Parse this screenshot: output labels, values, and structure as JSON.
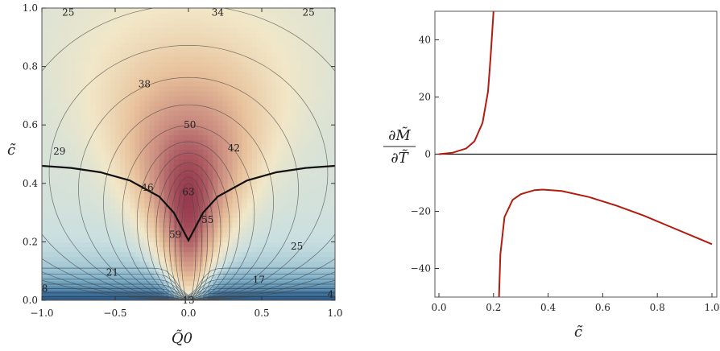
{
  "chart_data": [
    {
      "type": "contour",
      "xlabel": "Q̃0",
      "ylabel": "c̃",
      "xlim": [
        -1.0,
        1.0
      ],
      "ylim": [
        0.0,
        1.0
      ],
      "xticks": [
        "-1.0",
        "-0.5",
        "0.0",
        "0.5",
        "1.0"
      ],
      "yticks": [
        "0.0",
        "0.2",
        "0.4",
        "0.6",
        "0.8",
        "1.0"
      ],
      "colormap": [
        "#2f5f8a",
        "#7fb0c9",
        "#c9dfe0",
        "#f1e7c8",
        "#e8c29c",
        "#c98a7e",
        "#93324a"
      ],
      "contour_labels": [
        {
          "text": "25",
          "x": -0.82,
          "y": 0.985
        },
        {
          "text": "34",
          "x": 0.2,
          "y": 0.985
        },
        {
          "text": "25",
          "x": 0.82,
          "y": 0.985
        },
        {
          "text": "38",
          "x": -0.3,
          "y": 0.74
        },
        {
          "text": "50",
          "x": 0.01,
          "y": 0.6
        },
        {
          "text": "42",
          "x": 0.31,
          "y": 0.52
        },
        {
          "text": "29",
          "x": -0.88,
          "y": 0.51
        },
        {
          "text": "46",
          "x": -0.28,
          "y": 0.385
        },
        {
          "text": "63",
          "x": 0.0,
          "y": 0.37
        },
        {
          "text": "55",
          "x": 0.13,
          "y": 0.275
        },
        {
          "text": "59",
          "x": -0.09,
          "y": 0.225
        },
        {
          "text": "25",
          "x": 0.74,
          "y": 0.185
        },
        {
          "text": "21",
          "x": -0.52,
          "y": 0.095
        },
        {
          "text": "17",
          "x": 0.48,
          "y": 0.07
        },
        {
          "text": "8",
          "x": -0.98,
          "y": 0.04
        },
        {
          "text": "4",
          "x": 0.97,
          "y": 0.02
        },
        {
          "text": "13",
          "x": 0.0,
          "y": 0.0
        }
      ],
      "boundary_curve": {
        "x": [
          -1.0,
          -0.8,
          -0.6,
          -0.4,
          -0.2,
          -0.1,
          0.0,
          0.1,
          0.2,
          0.4,
          0.6,
          0.8,
          1.0
        ],
        "y": [
          0.46,
          0.453,
          0.438,
          0.41,
          0.355,
          0.3,
          0.205,
          0.3,
          0.355,
          0.41,
          0.438,
          0.453,
          0.46
        ]
      }
    },
    {
      "type": "line",
      "xlabel": "c̃",
      "ylabel_num": "∂M̃",
      "ylabel_den": "∂T̃",
      "xlim": [
        0.0,
        1.0
      ],
      "ylim": [
        -50,
        50
      ],
      "xticks": [
        "0.0",
        "0.2",
        "0.4",
        "0.6",
        "0.8",
        "1.0"
      ],
      "yticks": [
        "-40",
        "-20",
        "0",
        "20",
        "40"
      ],
      "line_color": "#b31b0f",
      "series": [
        {
          "x": [
            0.0,
            0.05,
            0.1,
            0.13,
            0.16,
            0.18,
            0.19,
            0.2
          ],
          "y": [
            0,
            0.5,
            2,
            4.5,
            11,
            22,
            35,
            50
          ]
        },
        {
          "x": [
            0.22,
            0.225,
            0.24,
            0.27,
            0.3,
            0.35,
            0.38,
            0.45,
            0.55,
            0.65,
            0.75,
            0.85,
            0.95,
            1.0
          ],
          "y": [
            -50,
            -35,
            -22,
            -16,
            -14,
            -12.6,
            -12.4,
            -12.9,
            -15,
            -18,
            -21.5,
            -25.5,
            -29.5,
            -31.5
          ]
        }
      ]
    }
  ]
}
